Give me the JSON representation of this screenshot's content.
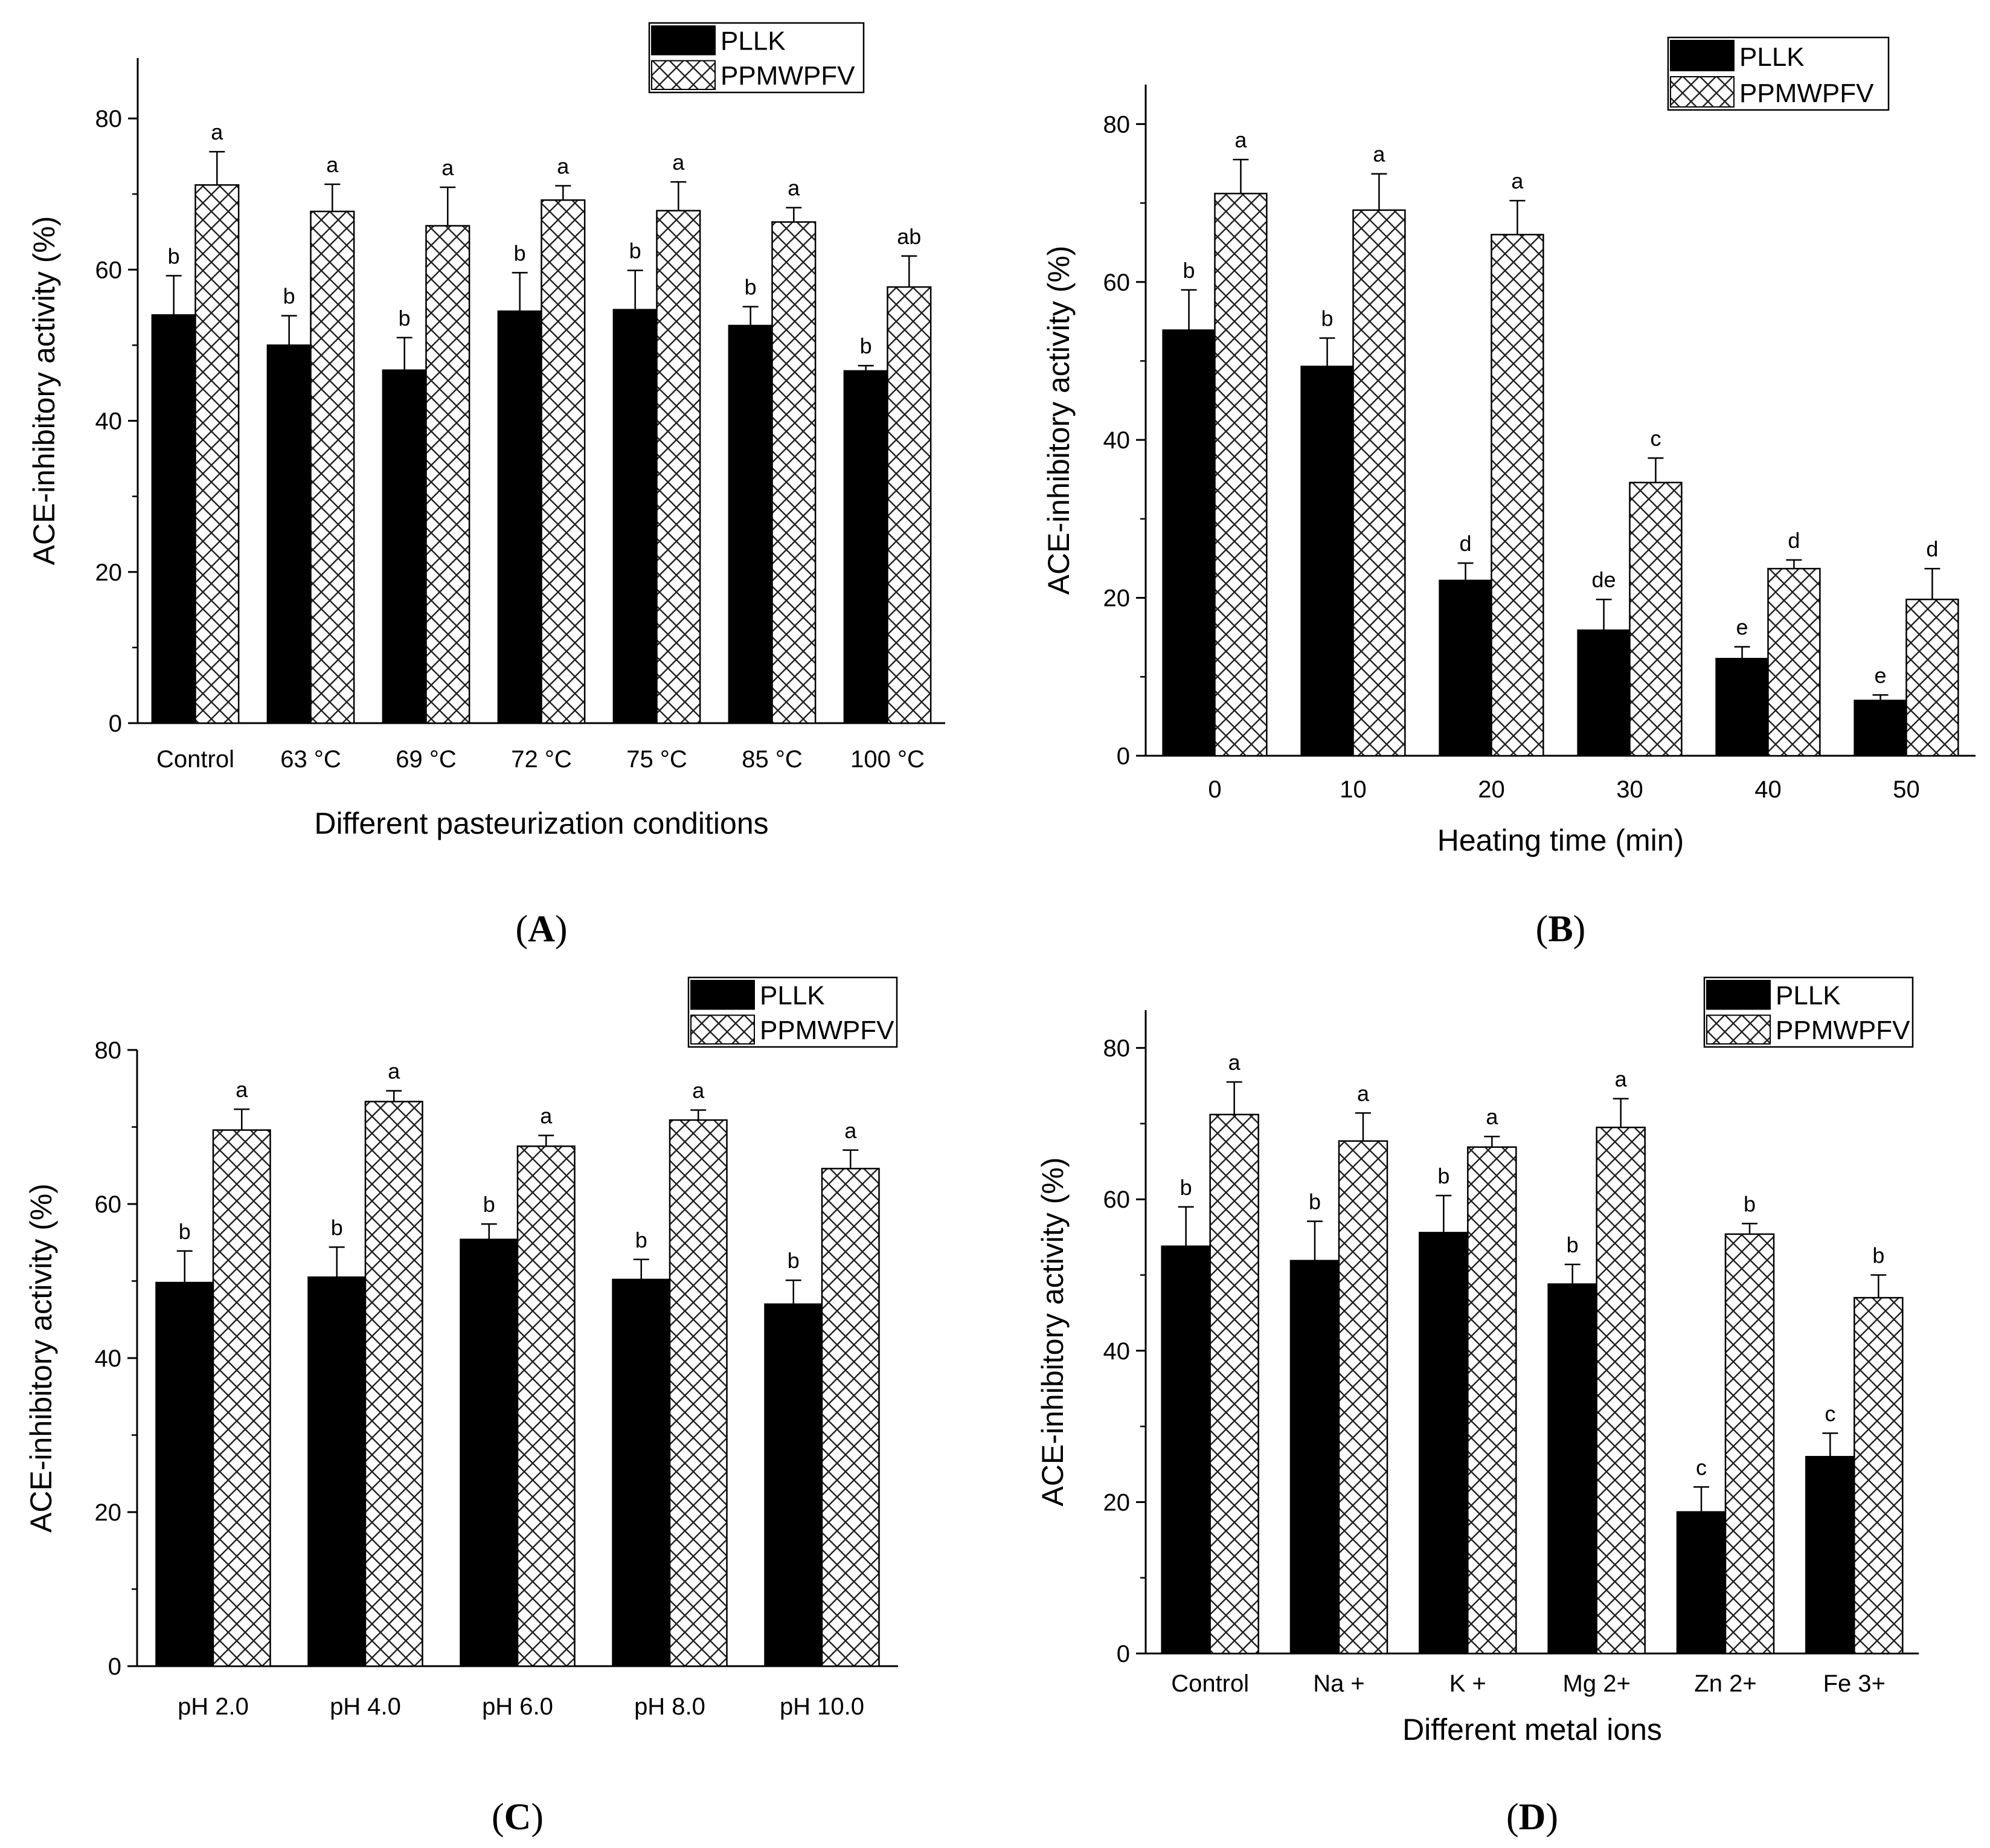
{
  "chart_data": [
    {
      "type": "bar",
      "panel_label": "A",
      "categories": [
        "Control",
        "63 °C",
        "69 °C",
        "72 °C",
        "75 °C",
        "85 °C",
        "100 °C"
      ],
      "series": [
        {
          "name": "PLLK",
          "values": [
            54,
            50,
            46.7,
            54.5,
            54.7,
            52.6,
            46.6
          ],
          "errors": [
            5.2,
            3.9,
            4.3,
            5.1,
            5.2,
            2.5,
            0.7
          ],
          "letters": [
            "b",
            "b",
            "b",
            "b",
            "b",
            "b",
            "b"
          ]
        },
        {
          "name": "PPMWPFV",
          "values": [
            71.2,
            67.7,
            65.8,
            69.2,
            67.8,
            66.3,
            57.7
          ],
          "errors": [
            4.4,
            3.6,
            5.1,
            1.9,
            3.8,
            1.9,
            4.1
          ],
          "letters": [
            "a",
            "a",
            "a",
            "a",
            "a",
            "a",
            "ab"
          ]
        }
      ],
      "xlabel": "Different pasteurization conditions",
      "ylabel": "ACE-inhibitory activity (%)",
      "ylim": [
        0,
        88
      ],
      "yticks": [
        "0",
        "20",
        "40",
        "60",
        "80"
      ],
      "legend": "top-right"
    },
    {
      "type": "bar",
      "panel_label": "B",
      "categories": [
        "0",
        "10",
        "20",
        "30",
        "40",
        "50"
      ],
      "series": [
        {
          "name": "PLLK",
          "values": [
            53.9,
            49.3,
            22.2,
            15.9,
            12.3,
            7
          ],
          "errors": [
            5.1,
            3.6,
            2.2,
            3.9,
            1.5,
            0.7
          ],
          "letters": [
            "b",
            "b",
            "d",
            "de",
            "e",
            "e"
          ]
        },
        {
          "name": "PPMWPFV",
          "values": [
            71.2,
            69.1,
            66,
            34.6,
            23.7,
            19.8
          ],
          "errors": [
            4.3,
            4.6,
            4.3,
            3.1,
            1.1,
            3.9
          ],
          "letters": [
            "a",
            "a",
            "a",
            "c",
            "d",
            "d"
          ]
        }
      ],
      "xlabel": "Heating time (min)",
      "ylabel": "ACE-inhibitory activity (%)",
      "ylim": [
        0,
        85
      ],
      "yticks": [
        "0",
        "20",
        "40",
        "60",
        "80"
      ],
      "legend": "top-right"
    },
    {
      "type": "bar",
      "panel_label": "C",
      "categories": [
        "pH 2.0",
        "pH 4.0",
        "pH 6.0",
        "pH 8.0",
        "pH 10.0"
      ],
      "series": [
        {
          "name": "PLLK",
          "values": [
            49.8,
            50.5,
            55.4,
            50.2,
            47
          ],
          "errors": [
            4.1,
            3.9,
            2,
            2.6,
            3.1
          ],
          "letters": [
            "b",
            "b",
            "b",
            "b",
            "b"
          ]
        },
        {
          "name": "PPMWPFV",
          "values": [
            69.6,
            73.3,
            67.5,
            70.9,
            64.6
          ],
          "errors": [
            2.7,
            1.4,
            1.4,
            1.3,
            2.4
          ],
          "letters": [
            "a",
            "a",
            "a",
            "a",
            "a"
          ]
        }
      ],
      "xlabel": "",
      "ylabel": "ACE-inhibitory activity (%)",
      "ylim": [
        0,
        80
      ],
      "yticks": [
        "0",
        "20",
        "40",
        "60",
        "80"
      ],
      "legend": "top-right"
    },
    {
      "type": "bar",
      "panel_label": "D",
      "categories": [
        "Control",
        "Na +",
        "K +",
        "Mg 2+",
        "Zn 2+",
        "Fe 3+"
      ],
      "series": [
        {
          "name": "PLLK",
          "values": [
            53.8,
            51.9,
            55.6,
            48.8,
            18.7,
            26
          ],
          "errors": [
            5.2,
            5.2,
            4.9,
            2.6,
            3.3,
            3.1
          ],
          "letters": [
            "b",
            "b",
            "b",
            "b",
            "c",
            "c"
          ]
        },
        {
          "name": "PPMWPFV",
          "values": [
            71.2,
            67.7,
            66.9,
            69.5,
            55.4,
            47
          ],
          "errors": [
            4.3,
            3.7,
            1.4,
            3.8,
            1.4,
            3
          ],
          "letters": [
            "a",
            "a",
            "a",
            "a",
            "b",
            "b"
          ]
        }
      ],
      "xlabel": "Different metal ions",
      "ylabel": "ACE-inhibitory activity (%)",
      "ylim": [
        0,
        85
      ],
      "yticks": [
        "0",
        "20",
        "40",
        "60",
        "80"
      ],
      "legend": "top-right"
    }
  ]
}
